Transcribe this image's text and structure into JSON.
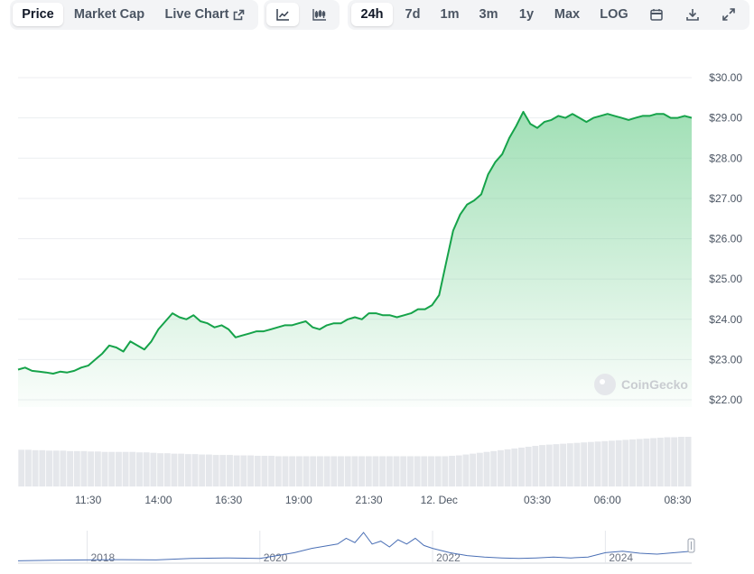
{
  "toolbar": {
    "metric_tabs": [
      {
        "label": "Price",
        "active": true
      },
      {
        "label": "Market Cap",
        "active": false
      },
      {
        "label": "Live Chart",
        "active": false
      }
    ],
    "chart_type_tabs": [
      {
        "icon": "line-chart-icon",
        "active": true
      },
      {
        "icon": "candlestick-chart-icon",
        "active": false
      }
    ],
    "range_tabs": [
      {
        "label": "24h",
        "active": true
      },
      {
        "label": "7d",
        "active": false
      },
      {
        "label": "1m",
        "active": false
      },
      {
        "label": "3m",
        "active": false
      },
      {
        "label": "1y",
        "active": false
      },
      {
        "label": "Max",
        "active": false
      },
      {
        "label": "LOG",
        "active": false
      }
    ],
    "tool_icons": [
      "calendar-icon",
      "download-icon",
      "expand-icon"
    ]
  },
  "watermark": "CoinGecko",
  "colors": {
    "line": "#16a34a",
    "area_top": "#86d9a3",
    "volume": "#e5e7eb",
    "navigator_line": "#4a6fb5",
    "active_tab_bg": "#ffffff",
    "tab_group_bg": "#f3f4f6"
  },
  "chart_data": {
    "type": "line",
    "ylim": [
      22,
      30
    ],
    "y_ticks": [
      "$30.00",
      "$29.00",
      "$28.00",
      "$27.00",
      "$26.00",
      "$25.00",
      "$24.00",
      "$23.00",
      "$22.00"
    ],
    "y_tick_values": [
      30,
      29,
      28,
      27,
      26,
      25,
      24,
      23,
      22
    ],
    "x_range_hours": [
      9.0,
      33.0
    ],
    "x_ticks": [
      "11:30",
      "14:00",
      "16:30",
      "19:00",
      "21:30",
      "12. Dec",
      "03:30",
      "06:00",
      "08:30"
    ],
    "x_tick_hours": [
      11.5,
      14.0,
      16.5,
      19.0,
      21.5,
      24.0,
      27.5,
      30.0,
      32.5
    ],
    "price_series": {
      "x_hours": [
        9.0,
        9.25,
        9.5,
        9.75,
        10.0,
        10.25,
        10.5,
        10.75,
        11.0,
        11.25,
        11.5,
        11.75,
        12.0,
        12.25,
        12.5,
        12.75,
        13.0,
        13.25,
        13.5,
        13.75,
        14.0,
        14.25,
        14.5,
        14.75,
        15.0,
        15.25,
        15.5,
        15.75,
        16.0,
        16.25,
        16.5,
        16.75,
        17.0,
        17.25,
        17.5,
        17.75,
        18.0,
        18.25,
        18.5,
        18.75,
        19.0,
        19.25,
        19.5,
        19.75,
        20.0,
        20.25,
        20.5,
        20.75,
        21.0,
        21.25,
        21.5,
        21.75,
        22.0,
        22.25,
        22.5,
        22.75,
        23.0,
        23.25,
        23.5,
        23.75,
        24.0,
        24.25,
        24.5,
        24.75,
        25.0,
        25.25,
        25.5,
        25.75,
        26.0,
        26.25,
        26.5,
        26.75,
        27.0,
        27.25,
        27.5,
        27.75,
        28.0,
        28.25,
        28.5,
        28.75,
        29.0,
        29.25,
        29.5,
        29.75,
        30.0,
        30.25,
        30.5,
        30.75,
        31.0,
        31.25,
        31.5,
        31.75,
        32.0,
        32.25,
        32.5,
        32.75,
        33.0
      ],
      "values": [
        22.75,
        22.8,
        22.72,
        22.7,
        22.68,
        22.65,
        22.7,
        22.68,
        22.72,
        22.8,
        22.85,
        23.0,
        23.15,
        23.35,
        23.3,
        23.2,
        23.45,
        23.35,
        23.25,
        23.45,
        23.75,
        23.95,
        24.15,
        24.05,
        24.0,
        24.1,
        23.95,
        23.9,
        23.8,
        23.85,
        23.75,
        23.55,
        23.6,
        23.65,
        23.7,
        23.7,
        23.75,
        23.8,
        23.85,
        23.85,
        23.9,
        23.95,
        23.8,
        23.75,
        23.85,
        23.9,
        23.9,
        24.0,
        24.05,
        24.0,
        24.15,
        24.15,
        24.1,
        24.1,
        24.05,
        24.1,
        24.15,
        24.25,
        24.25,
        24.35,
        24.6,
        25.4,
        26.2,
        26.6,
        26.85,
        26.95,
        27.1,
        27.6,
        27.9,
        28.1,
        28.5,
        28.8,
        29.15,
        28.85,
        28.75,
        28.9,
        28.95,
        29.05,
        29.0,
        29.1,
        29.0,
        28.9,
        29.0,
        29.05,
        29.1,
        29.05,
        29.0,
        28.95,
        29.0,
        29.05,
        29.05,
        29.1,
        29.1,
        29.0,
        29.0,
        29.05,
        29.0
      ]
    },
    "volume_series": {
      "values": [
        0.85,
        0.85,
        0.84,
        0.84,
        0.83,
        0.83,
        0.83,
        0.82,
        0.82,
        0.82,
        0.81,
        0.81,
        0.8,
        0.8,
        0.8,
        0.8,
        0.8,
        0.79,
        0.79,
        0.78,
        0.77,
        0.77,
        0.76,
        0.76,
        0.75,
        0.75,
        0.74,
        0.74,
        0.73,
        0.73,
        0.73,
        0.72,
        0.72,
        0.72,
        0.71,
        0.71,
        0.71,
        0.7,
        0.7,
        0.7,
        0.7,
        0.7,
        0.7,
        0.7,
        0.7,
        0.7,
        0.7,
        0.7,
        0.7,
        0.7,
        0.7,
        0.7,
        0.7,
        0.7,
        0.7,
        0.7,
        0.7,
        0.7,
        0.7,
        0.7,
        0.7,
        0.7,
        0.71,
        0.72,
        0.74,
        0.76,
        0.78,
        0.8,
        0.82,
        0.84,
        0.86,
        0.88,
        0.9,
        0.92,
        0.94,
        0.96,
        0.97,
        0.98,
        0.99,
        1.0,
        1.01,
        1.02,
        1.03,
        1.04,
        1.05,
        1.06,
        1.07,
        1.08,
        1.09,
        1.1,
        1.11,
        1.12,
        1.13,
        1.14,
        1.14,
        1.15,
        1.15
      ]
    },
    "navigator": {
      "x_labels": [
        "2018",
        "2020",
        "2022",
        "2024"
      ],
      "x_label_years": [
        2018,
        2020,
        2022,
        2024
      ],
      "year_range": [
        2017.2,
        2025.0
      ],
      "x_years": [
        2017.2,
        2017.6,
        2018.0,
        2018.4,
        2018.8,
        2019.2,
        2019.6,
        2020.0,
        2020.2,
        2020.4,
        2020.6,
        2020.8,
        2020.9,
        2021.0,
        2021.1,
        2021.2,
        2021.3,
        2021.4,
        2021.5,
        2021.6,
        2021.7,
        2021.8,
        2021.9,
        2022.0,
        2022.2,
        2022.4,
        2022.6,
        2022.8,
        2023.0,
        2023.2,
        2023.4,
        2023.6,
        2023.8,
        2024.0,
        2024.2,
        2024.4,
        2024.6,
        2024.8,
        2025.0
      ],
      "values": [
        0.02,
        0.04,
        0.05,
        0.06,
        0.05,
        0.1,
        0.12,
        0.1,
        0.2,
        0.3,
        0.45,
        0.55,
        0.6,
        0.8,
        0.65,
        1.0,
        0.6,
        0.7,
        0.5,
        0.75,
        0.6,
        0.8,
        0.55,
        0.45,
        0.3,
        0.2,
        0.15,
        0.12,
        0.1,
        0.12,
        0.15,
        0.12,
        0.15,
        0.3,
        0.35,
        0.28,
        0.25,
        0.3,
        0.35
      ]
    }
  }
}
